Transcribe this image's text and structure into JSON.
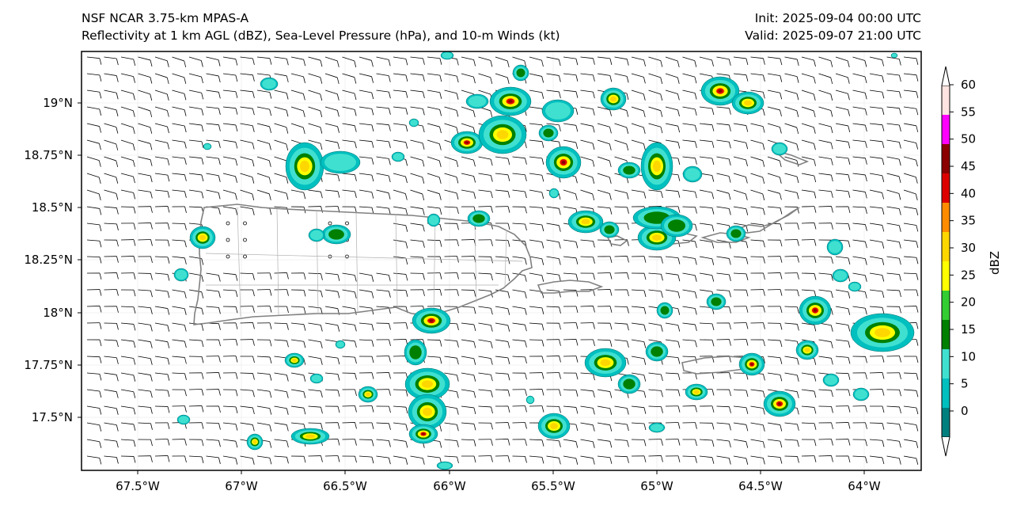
{
  "header": {
    "left_line1": "NSF NCAR 3.75-km MPAS-A",
    "left_line2": "Reflectivity at 1 km AGL (dBZ), Sea-Level Pressure (hPa), and 10-m Winds (kt)",
    "right_line1": "Init: 2025-09-04 00:00 UTC",
    "right_line2": "Valid: 2025-09-07 21:00 UTC"
  },
  "map": {
    "lon_labels": [
      "67.5°W",
      "67°W",
      "66.5°W",
      "66°W",
      "65.5°W",
      "65°W",
      "64.5°W",
      "64°W"
    ],
    "lat_labels": [
      "19°N",
      "18.75°N",
      "18.5°N",
      "18.25°N",
      "18°N",
      "17.75°N",
      "17.5°N"
    ]
  },
  "colorbar": {
    "label": "dBZ",
    "ticks": [
      "0",
      "5",
      "10",
      "15",
      "20",
      "25",
      "30",
      "35",
      "40",
      "45",
      "50",
      "55",
      "60"
    ],
    "colors": [
      "#007f7f",
      "#00bfbf",
      "#40e0d0",
      "#008000",
      "#32cd32",
      "#ffff00",
      "#ffd700",
      "#ff8c00",
      "#dd0000",
      "#8b0000",
      "#ff00ff",
      "#ffe4e1"
    ]
  }
}
